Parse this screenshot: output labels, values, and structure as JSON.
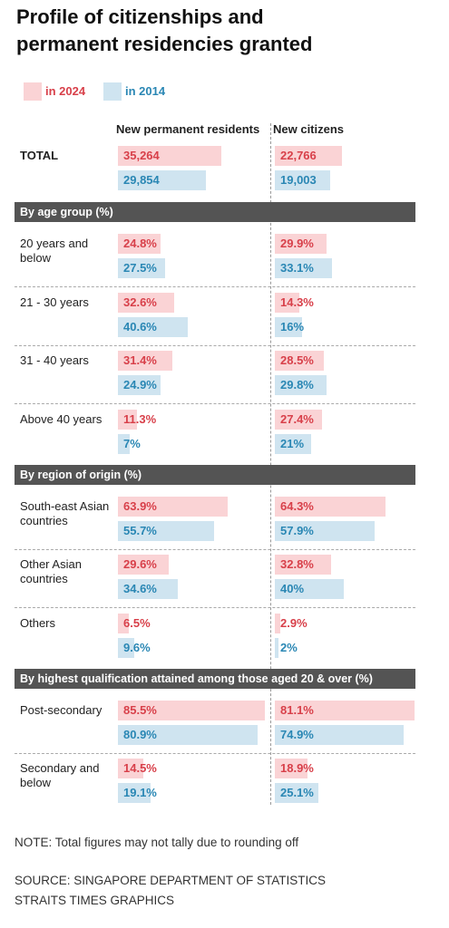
{
  "title": "Profile of citizenships and permanent residencies granted",
  "legend": [
    {
      "label": "in 2024",
      "color": "#fad3d5",
      "text_color": "#d8404a"
    },
    {
      "label": "in 2014",
      "color": "#cfe4f0",
      "text_color": "#2a87b4"
    }
  ],
  "columns": [
    "New permanent residents",
    "New citizens"
  ],
  "total": {
    "label": "TOTAL",
    "cells": [
      {
        "values": [
          35264,
          29854
        ],
        "value_labels": [
          "35,264",
          "29,854"
        ]
      },
      {
        "values": [
          22766,
          19003
        ],
        "value_labels": [
          "22,766",
          "19,003"
        ]
      }
    ]
  },
  "sections": [
    {
      "title": "By age group (%)",
      "rows": [
        {
          "label": "20 years and below",
          "cells": [
            {
              "values": [
                24.8,
                27.5
              ],
              "value_labels": [
                "24.8%",
                "27.5%"
              ]
            },
            {
              "values": [
                29.9,
                33.1
              ],
              "value_labels": [
                "29.9%",
                "33.1%"
              ]
            }
          ]
        },
        {
          "label": "21 - 30 years",
          "cells": [
            {
              "values": [
                32.6,
                40.6
              ],
              "value_labels": [
                "32.6%",
                "40.6%"
              ]
            },
            {
              "values": [
                14.3,
                16
              ],
              "value_labels": [
                "14.3%",
                "16%"
              ]
            }
          ]
        },
        {
          "label": "31 - 40 years",
          "cells": [
            {
              "values": [
                31.4,
                24.9
              ],
              "value_labels": [
                "31.4%",
                "24.9%"
              ]
            },
            {
              "values": [
                28.5,
                29.8
              ],
              "value_labels": [
                "28.5%",
                "29.8%"
              ]
            }
          ]
        },
        {
          "label": "Above 40 years",
          "cells": [
            {
              "values": [
                11.3,
                7
              ],
              "value_labels": [
                "11.3%",
                "7%"
              ]
            },
            {
              "values": [
                27.4,
                21
              ],
              "value_labels": [
                "27.4%",
                "21%"
              ]
            }
          ]
        }
      ]
    },
    {
      "title": "By region of origin (%)",
      "rows": [
        {
          "label": "South-east Asian countries",
          "cells": [
            {
              "values": [
                63.9,
                55.7
              ],
              "value_labels": [
                "63.9%",
                "55.7%"
              ]
            },
            {
              "values": [
                64.3,
                57.9
              ],
              "value_labels": [
                "64.3%",
                "57.9%"
              ]
            }
          ]
        },
        {
          "label": "Other Asian countries",
          "cells": [
            {
              "values": [
                29.6,
                34.6
              ],
              "value_labels": [
                "29.6%",
                "34.6%"
              ]
            },
            {
              "values": [
                32.8,
                40
              ],
              "value_labels": [
                "32.8%",
                "40%"
              ]
            }
          ]
        },
        {
          "label": "Others",
          "cells": [
            {
              "values": [
                6.5,
                9.6
              ],
              "value_labels": [
                "6.5%",
                "9.6%"
              ]
            },
            {
              "values": [
                2.9,
                2
              ],
              "value_labels": [
                "2.9%",
                "2%"
              ]
            }
          ]
        }
      ]
    },
    {
      "title": "By highest qualification attained among those aged 20 & over (%)",
      "rows": [
        {
          "label": "Post-secondary",
          "cells": [
            {
              "values": [
                85.5,
                80.9
              ],
              "value_labels": [
                "85.5%",
                "80.9%"
              ]
            },
            {
              "values": [
                81.1,
                74.9
              ],
              "value_labels": [
                "81.1%",
                "74.9%"
              ]
            }
          ]
        },
        {
          "label": "Secondary and below",
          "cells": [
            {
              "values": [
                14.5,
                19.1
              ],
              "value_labels": [
                "14.5%",
                "19.1%"
              ]
            },
            {
              "values": [
                18.9,
                25.1
              ],
              "value_labels": [
                "18.9%",
                "25.1%"
              ]
            }
          ]
        }
      ]
    }
  ],
  "note": "NOTE: Total figures may not tally due to rounding off",
  "source": [
    "SOURCE: SINGAPORE DEPARTMENT OF STATISTICS",
    "STRAITS TIMES GRAPHICS"
  ]
}
